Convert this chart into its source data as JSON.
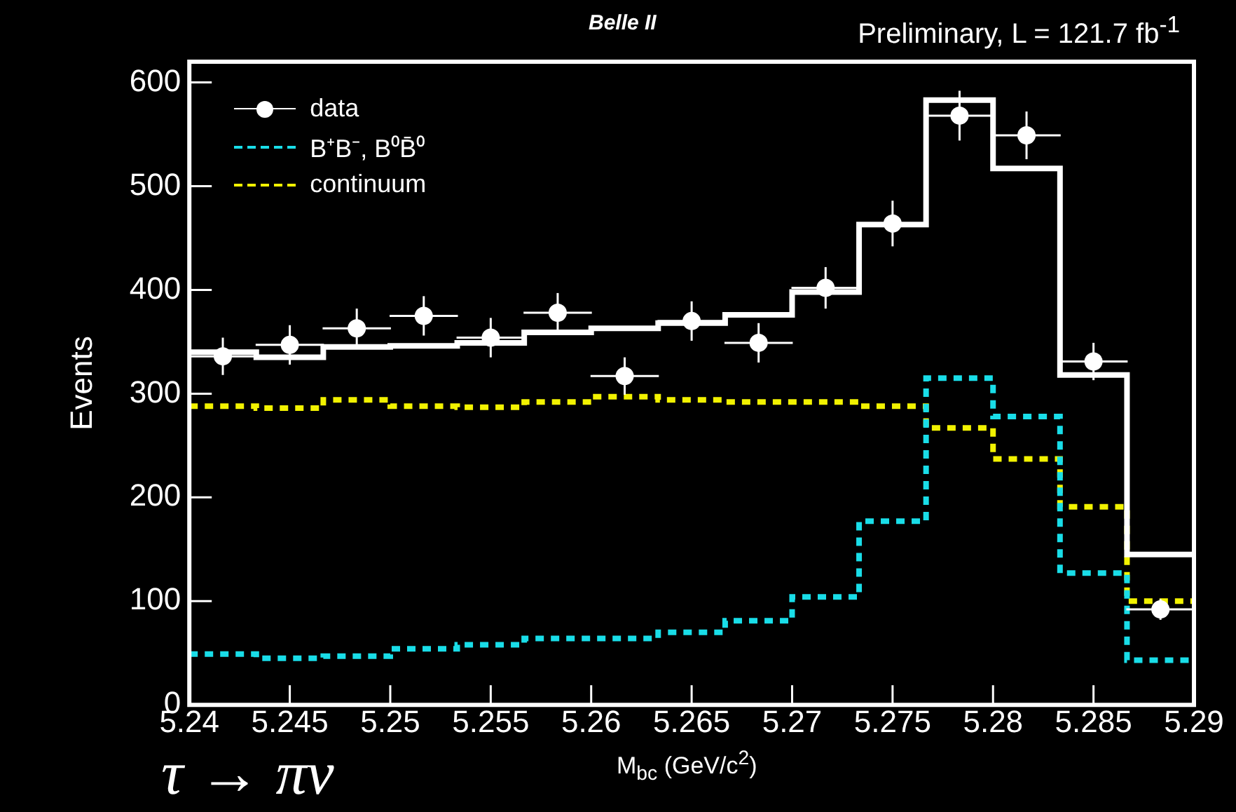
{
  "chart_data": {
    "type": "histogram",
    "title": "Belle II",
    "subtitle": "Preliminary, L = 121.7  fb$^{-1}$",
    "xlabel": "M$_{bc}$ (GeV/c$^{2}$)",
    "ylabel": "Events",
    "annotations": [
      "τ → πν"
    ],
    "bins": [
      5.24,
      5.243333,
      5.246667,
      5.25,
      5.253333,
      5.256667,
      5.26,
      5.263333,
      5.266667,
      5.27,
      5.273333,
      5.276667,
      5.28,
      5.283333,
      5.286667,
      5.29
    ],
    "series": [
      {
        "name": "data",
        "type": "scatter",
        "color": "#ffffff",
        "marker": "circle",
        "x": [
          5.241667,
          5.245,
          5.248333,
          5.251667,
          5.255,
          5.258333,
          5.261667,
          5.265,
          5.268333,
          5.271667,
          5.275,
          5.278333,
          5.281667,
          5.285,
          5.288333
        ],
        "values": [
          336,
          347,
          363,
          375,
          354,
          378,
          317,
          370,
          349,
          402,
          464,
          568,
          549,
          331,
          92
        ],
        "errors": [
          18,
          19,
          19,
          19,
          19,
          19,
          18,
          19,
          19,
          20,
          22,
          24,
          23,
          18,
          10
        ],
        "xerrors": [
          0.0017,
          0.0017,
          0.0017,
          0.0017,
          0.0017,
          0.0017,
          0.0017,
          0.0017,
          0.0017,
          0.0017,
          0.0017,
          0.0017,
          0.0017,
          0.0017,
          0.0017
        ]
      },
      {
        "color": "#ffffff",
        "line_style": "solid",
        "values": [
          340,
          335,
          345,
          346,
          349,
          359,
          363,
          368,
          376,
          398,
          463,
          583,
          517,
          318,
          145
        ]
      },
      {
        "name": "B⁺B⁻, B⁰B̄⁰",
        "color": "#19dde8",
        "line_style": "dotted",
        "values": [
          49,
          45,
          47,
          54,
          58,
          64,
          64,
          70,
          81,
          104,
          177,
          315,
          278,
          127,
          43
        ]
      },
      {
        "name": "continuum",
        "color": "#f2f200",
        "line_style": "dotted",
        "values": [
          288,
          286,
          294,
          288,
          287,
          292,
          297,
          294,
          292,
          292,
          288,
          267,
          237,
          191,
          100
        ]
      }
    ],
    "xlim": [
      5.24,
      5.29
    ],
    "xticks": [
      5.24,
      5.245,
      5.25,
      5.255,
      5.26,
      5.265,
      5.27,
      5.275,
      5.28,
      5.285,
      5.29
    ],
    "ylim": [
      0,
      620
    ],
    "yticks": [
      0,
      100,
      200,
      300,
      400,
      500,
      600
    ],
    "grid": false,
    "legend": "top left"
  }
}
